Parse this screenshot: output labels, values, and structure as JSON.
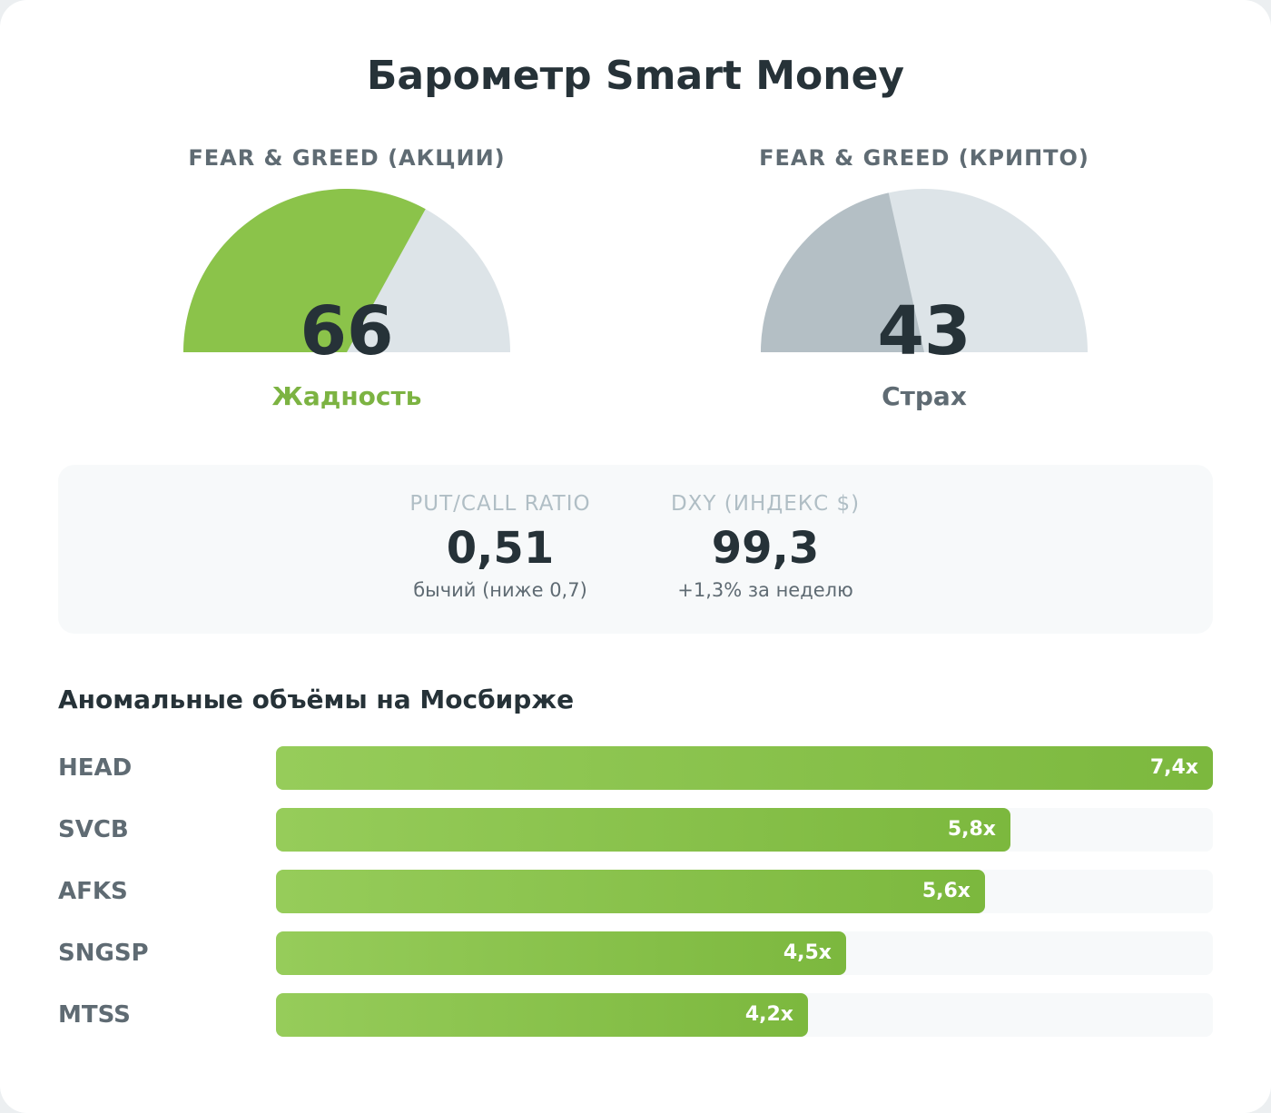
{
  "title": "Барометр Smart Money",
  "gauges": [
    {
      "label": "FEAR & GREED (АКЦИИ)",
      "value": 66,
      "value_text": "66",
      "state": "Жадность",
      "fill_color": "#8bc34a",
      "state_color": "#7cb342"
    },
    {
      "label": "FEAR & GREED (КРИПТО)",
      "value": 43,
      "value_text": "43",
      "state": "Страх",
      "fill_color": "#b4bfc5",
      "state_color": "#5f6b73"
    }
  ],
  "metrics": [
    {
      "label": "PUT/CALL RATIO",
      "value": "0,51",
      "sub": "бычий (ниже 0,7)"
    },
    {
      "label": "DXY (ИНДЕКС $)",
      "value": "99,3",
      "sub": "+1,3% за неделю"
    }
  ],
  "volumes_title": "Аномальные объёмы на Мосбирже",
  "chart_data": {
    "type": "bar",
    "orientation": "horizontal",
    "categories": [
      "HEAD",
      "SVCB",
      "AFKS",
      "SNGSP",
      "MTSS"
    ],
    "values": [
      7.4,
      5.8,
      5.6,
      4.5,
      4.2
    ],
    "value_labels": [
      "7,4x",
      "5,8x",
      "5,6x",
      "4,5x",
      "4,2x"
    ],
    "xlim": [
      0,
      7.4
    ]
  },
  "colors": {
    "accent": "#7cb342",
    "bar_start": "#96cc5a",
    "bar_end": "#7cb83e",
    "track": "#dde4e8"
  }
}
